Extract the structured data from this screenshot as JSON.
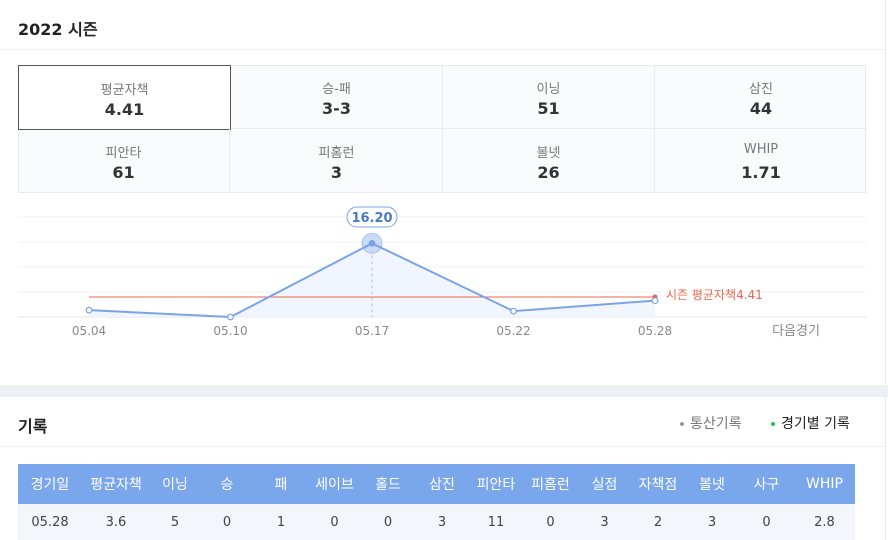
{
  "header": {
    "title": "2022 시즌"
  },
  "stats": [
    {
      "label": "평균자책",
      "value": 4.41
    },
    {
      "label": "승-패",
      "value": "3-3"
    },
    {
      "label": "이닝",
      "value": 51
    },
    {
      "label": "삼진",
      "value": 44
    },
    {
      "label": "피안타",
      "value": 61
    },
    {
      "label": "피홈런",
      "value": 3
    },
    {
      "label": "볼넷",
      "value": 26
    },
    {
      "label": "WHIP",
      "value": 1.71
    }
  ],
  "chart_data": {
    "type": "line",
    "categories": [
      "05.04",
      "05.10",
      "05.17",
      "05.22",
      "05.28"
    ],
    "next_label": "다음경기",
    "values": [
      1.5,
      0,
      16.2,
      1.3,
      3.6
    ],
    "value_labels": [
      null,
      null,
      "16.20",
      null,
      null
    ],
    "color": "#7ba3e8",
    "ylim": [
      0,
      22
    ],
    "average": {
      "label": "시즌 평균자책",
      "value": 4.41,
      "color": "#e8674f"
    }
  },
  "records": {
    "title": "기록",
    "tabs": [
      {
        "label": "통산기록",
        "active": false
      },
      {
        "label": "경기별 기록",
        "active": true
      }
    ],
    "table": {
      "headers": [
        "경기일",
        "평균자책",
        "이닝",
        "승",
        "패",
        "세이브",
        "홀드",
        "삼진",
        "피안타",
        "피홈런",
        "실점",
        "자책점",
        "볼넷",
        "사구",
        "WHIP"
      ],
      "rows": [
        [
          "05.28",
          3.6,
          5,
          0,
          1,
          0,
          0,
          3,
          11,
          0,
          3,
          2,
          3,
          0,
          2.8
        ]
      ]
    }
  }
}
